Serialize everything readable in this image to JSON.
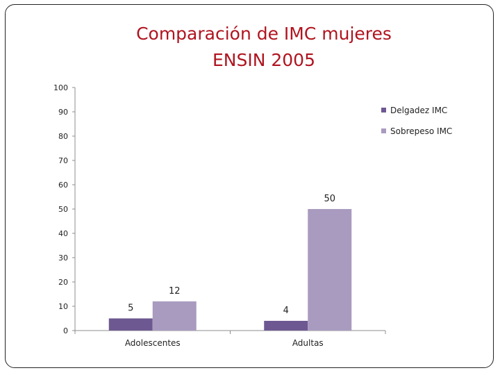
{
  "slide": {
    "title_line1": "Comparación de IMC mujeres",
    "title_line2": "ENSIN 2005"
  },
  "chart_data": {
    "type": "bar",
    "categories": [
      "Adolescentes",
      "Adultas"
    ],
    "series": [
      {
        "name": "Delgadez  IMC",
        "values": [
          5,
          4
        ],
        "color": "#6e5892"
      },
      {
        "name": "Sobrepeso  IMC",
        "values": [
          12,
          50
        ],
        "color": "#a99bbf"
      }
    ],
    "ylim": [
      0,
      100
    ],
    "yticks": [
      0,
      10,
      20,
      30,
      40,
      50,
      60,
      70,
      80,
      90,
      100
    ],
    "grid": false,
    "legend": "right",
    "data_labels": true
  }
}
